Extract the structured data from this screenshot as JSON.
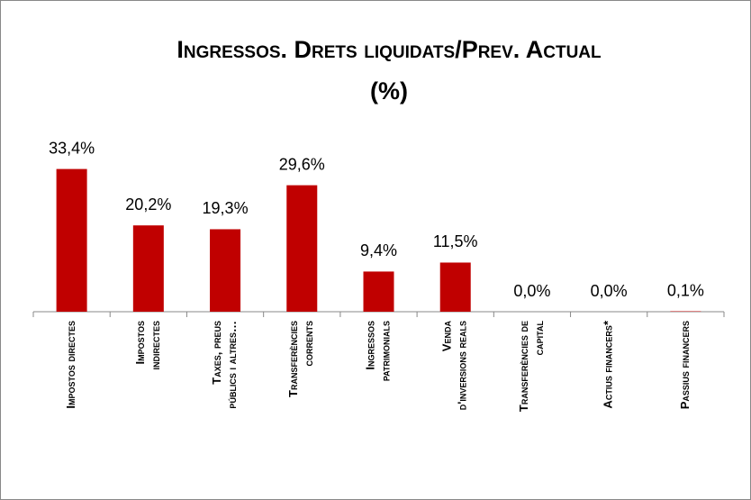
{
  "chart_data": {
    "type": "bar",
    "title": [
      "Ingressos. Drets liquidats/Prev. Actual",
      "(%)"
    ],
    "categories": [
      [
        "Impostos directes"
      ],
      [
        "Impostos",
        "indirectes"
      ],
      [
        "Taxes, preus",
        "públics i altres…"
      ],
      [
        "Transferències",
        "corrents"
      ],
      [
        "Ingressos",
        "patrimonials"
      ],
      [
        "Venda",
        "d'inversions reals"
      ],
      [
        "Transferències de",
        "capital"
      ],
      [
        "Actius financers*"
      ],
      [
        "Passius financers"
      ]
    ],
    "values": [
      33.4,
      20.2,
      19.3,
      29.6,
      9.4,
      11.5,
      0.0,
      0.0,
      0.1
    ],
    "value_labels": [
      "33,4%",
      "20,2%",
      "19,3%",
      "29,6%",
      "9,4%",
      "11,5%",
      "0,0%",
      "0,0%",
      "0,1%"
    ],
    "color": "#c00000",
    "ylim": [
      0,
      35
    ]
  }
}
